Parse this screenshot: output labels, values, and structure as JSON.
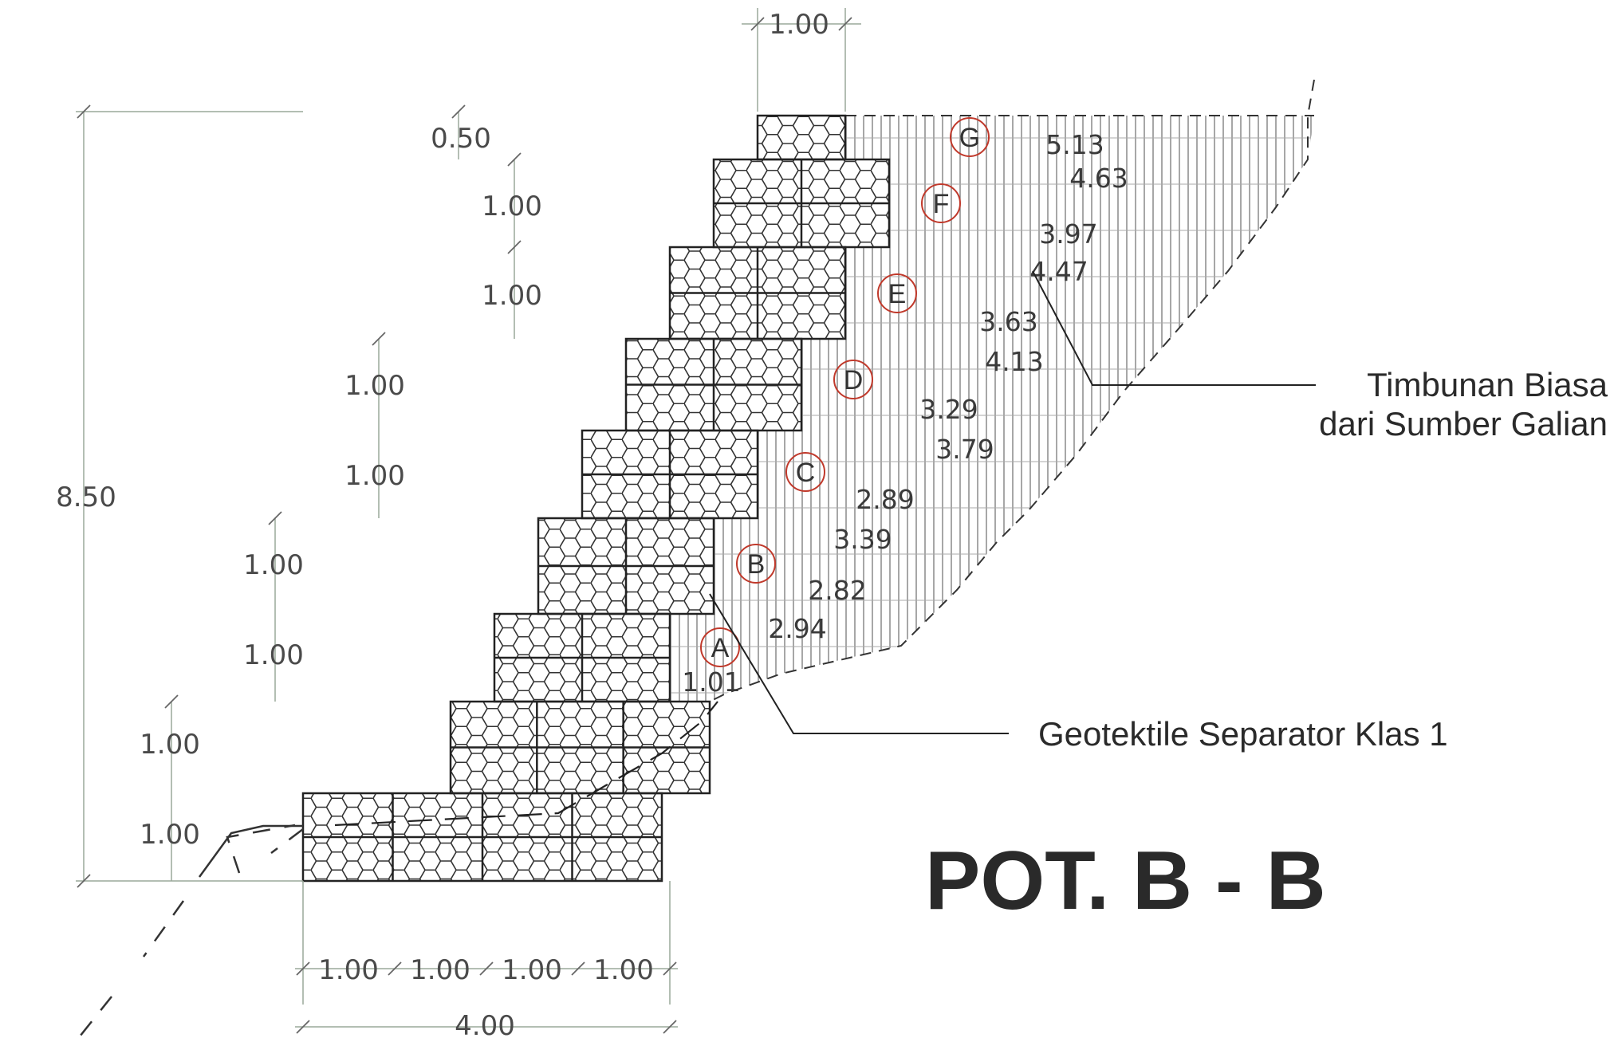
{
  "title": "POT. B - B",
  "callouts": {
    "fill_line1": "Timbunan Biasa",
    "fill_line2": "dari Sumber Galian",
    "geotextile": "Geotektile Separator Klas 1"
  },
  "dimensions": {
    "top_width": "1.00",
    "total_height": "8.50",
    "top_step": "0.50",
    "vertical_steps": [
      "1.00",
      "1.00",
      "1.00",
      "1.00",
      "1.00",
      "1.00",
      "1.00",
      "1.00"
    ],
    "bottom_segments": [
      "1.00",
      "1.00",
      "1.00",
      "1.00"
    ],
    "bottom_total": "4.00"
  },
  "zones": [
    {
      "label": "G",
      "values": [
        "5.13",
        "4.63"
      ]
    },
    {
      "label": "F",
      "values": [
        "3.97",
        "4.47"
      ]
    },
    {
      "label": "E",
      "values": [
        "3.63",
        "4.13"
      ]
    },
    {
      "label": "D",
      "values": [
        "3.29",
        "3.79"
      ]
    },
    {
      "label": "C",
      "values": [
        "2.89",
        "3.39"
      ]
    },
    {
      "label": "B",
      "values": [
        "2.82",
        "2.94"
      ]
    },
    {
      "label": "A",
      "values": [
        "1.01"
      ]
    }
  ],
  "colors": {
    "line": "#222222",
    "hatch": "#8a8a8a",
    "dimension": "#9aa89a",
    "zone_circle": "#c0392b"
  }
}
